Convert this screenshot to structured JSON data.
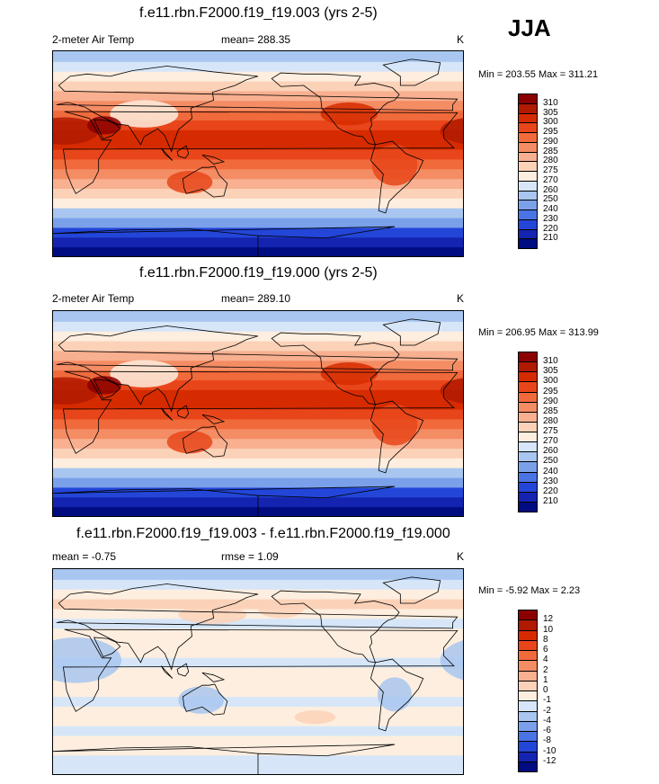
{
  "season": "JJA",
  "panels": [
    {
      "title": "f.e11.rbn.F2000.f19_f19.003 (yrs 2-5)",
      "left_label": "2-meter Air Temp",
      "center_label": "mean= 288.35",
      "right_label": "K",
      "minmax": "Min = 203.55 Max = 311.21",
      "levels": [
        "310",
        "305",
        "300",
        "295",
        "290",
        "285",
        "280",
        "275",
        "270",
        "260",
        "250",
        "240",
        "230",
        "220",
        "210"
      ],
      "colors": [
        "#8b0000",
        "#b01a00",
        "#d62b00",
        "#e8461a",
        "#f06a3c",
        "#f48c64",
        "#f8b090",
        "#fbd2b8",
        "#fdeedf",
        "#d6e6f8",
        "#a8c6f0",
        "#7aa0ea",
        "#4a74e4",
        "#2346d8",
        "#1424b0",
        "#000c80"
      ],
      "temps": {
        "tropics": 300,
        "midlat": 290
      }
    },
    {
      "title": "f.e11.rbn.F2000.f19_f19.000 (yrs 2-5)",
      "left_label": "2-meter Air Temp",
      "center_label": "mean= 289.10",
      "right_label": "K",
      "minmax": "Min = 206.95 Max = 313.99",
      "levels": [
        "310",
        "305",
        "300",
        "295",
        "290",
        "285",
        "280",
        "275",
        "270",
        "260",
        "250",
        "240",
        "230",
        "220",
        "210"
      ],
      "colors": [
        "#8b0000",
        "#b01a00",
        "#d62b00",
        "#e8461a",
        "#f06a3c",
        "#f48c64",
        "#f8b090",
        "#fbd2b8",
        "#fdeedf",
        "#d6e6f8",
        "#a8c6f0",
        "#7aa0ea",
        "#4a74e4",
        "#2346d8",
        "#1424b0",
        "#000c80"
      ],
      "temps": {
        "tropics": 301,
        "midlat": 291
      }
    },
    {
      "title": "f.e11.rbn.F2000.f19_f19.003 - f.e11.rbn.F2000.f19_f19.000",
      "left_label": "mean =  -0.75",
      "center_label": "rmse =   1.09",
      "right_label": "K",
      "minmax": "Min =  -5.92 Max =   2.23",
      "levels": [
        "12",
        "10",
        "8",
        "6",
        "4",
        "2",
        "1",
        "0",
        "-1",
        "-2",
        "-4",
        "-6",
        "-8",
        "-10",
        "-12"
      ],
      "colors": [
        "#8b0000",
        "#b01a00",
        "#d62b00",
        "#e8461a",
        "#f06a3c",
        "#f48c64",
        "#f8b090",
        "#fbd2b8",
        "#fdeedf",
        "#d6e6f8",
        "#a8c6f0",
        "#7aa0ea",
        "#4a74e4",
        "#2346d8",
        "#1424b0",
        "#000c80"
      ],
      "temps": {
        "tropics": -0.5,
        "midlat": -0.5
      }
    }
  ]
}
